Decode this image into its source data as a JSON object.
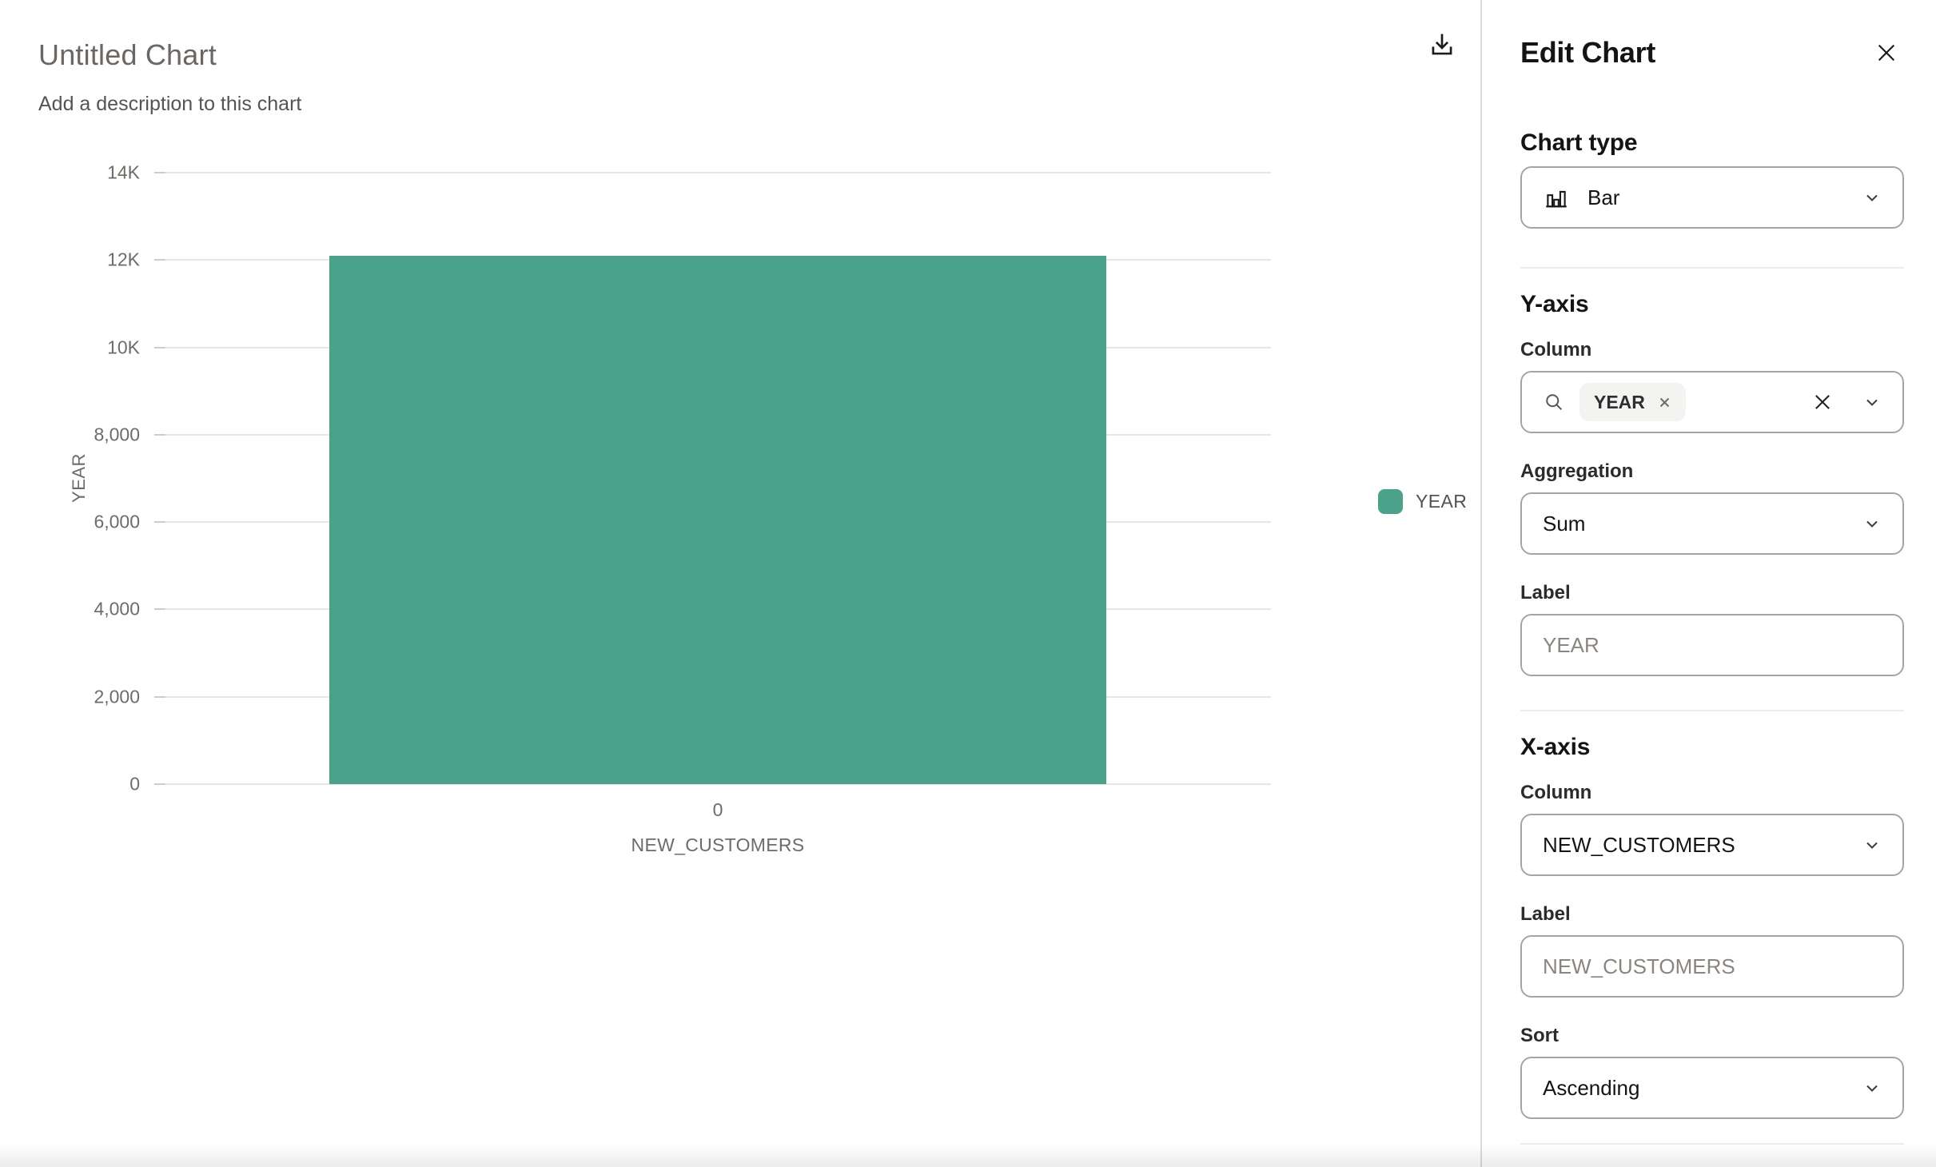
{
  "chart_header": {
    "title": "Untitled Chart",
    "description": "Add a description to this chart"
  },
  "chart_data": {
    "type": "bar",
    "title": "Untitled Chart",
    "categories": [
      "0"
    ],
    "series": [
      {
        "name": "YEAR",
        "values": [
          12100
        ],
        "color": "#4aa28a"
      }
    ],
    "xlabel": "NEW_CUSTOMERS",
    "ylabel": "YEAR",
    "ylim": [
      0,
      14000
    ],
    "yticks": [
      {
        "value": 0,
        "label": "0"
      },
      {
        "value": 2000,
        "label": "2,000"
      },
      {
        "value": 4000,
        "label": "4,000"
      },
      {
        "value": 6000,
        "label": "6,000"
      },
      {
        "value": 8000,
        "label": "8,000"
      },
      {
        "value": 10000,
        "label": "10K"
      },
      {
        "value": 12000,
        "label": "12K"
      },
      {
        "value": 14000,
        "label": "14K"
      }
    ],
    "grid": true,
    "legend_position": "right",
    "legend": [
      {
        "label": "YEAR",
        "color": "#4aa28a"
      }
    ]
  },
  "icons": {
    "download": "tray-arrow-down",
    "close": "x",
    "search": "magnifier",
    "chevron": "chevron-down",
    "clear": "x",
    "chip_remove": "x",
    "chart_type": "bar-chart"
  },
  "panel": {
    "title": "Edit Chart",
    "chart_type": {
      "heading": "Chart type",
      "selected": "Bar"
    },
    "y_axis": {
      "heading": "Y-axis",
      "column_label": "Column",
      "selected_columns": [
        "YEAR"
      ],
      "aggregation_label": "Aggregation",
      "aggregation_selected": "Sum",
      "label_label": "Label",
      "label_value": "",
      "label_placeholder": "YEAR"
    },
    "x_axis": {
      "heading": "X-axis",
      "column_label": "Column",
      "column_selected": "NEW_CUSTOMERS",
      "label_label": "Label",
      "label_value": "",
      "label_placeholder": "NEW_CUSTOMERS",
      "sort_label": "Sort",
      "sort_selected": "Ascending"
    }
  },
  "colors": {
    "bar": "#4aa28a",
    "grid_line": "#e7e7e7",
    "axis_text": "#6f6b66",
    "panel_border": "#dcdcdc"
  }
}
